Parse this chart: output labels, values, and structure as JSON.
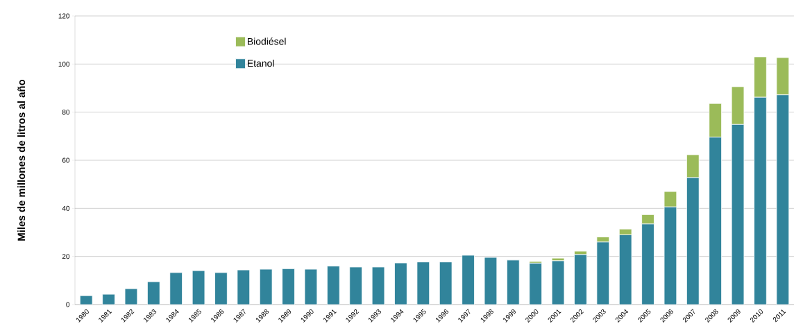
{
  "chart_data": {
    "type": "bar",
    "stacked": true,
    "ylabel": "Miles de millones de litros al año",
    "categories": [
      "1980",
      "1981",
      "1982",
      "1983",
      "1984",
      "1985",
      "1986",
      "1987",
      "1988",
      "1989",
      "1990",
      "1991",
      "1992",
      "1993",
      "1994",
      "1995",
      "1996",
      "1997",
      "1998",
      "1999",
      "2000",
      "2001",
      "2002",
      "2003",
      "2004",
      "2005",
      "2006",
      "2007",
      "2008",
      "2009",
      "2010",
      "2011"
    ],
    "series": [
      {
        "name": "Etanol",
        "color": "#31849b",
        "values": [
          3.7,
          4.3,
          6.6,
          9.5,
          13.3,
          14.1,
          13.3,
          14.4,
          14.7,
          14.9,
          14.7,
          16.0,
          15.6,
          15.6,
          17.3,
          17.7,
          17.7,
          20.5,
          19.6,
          18.5,
          17.2,
          18.2,
          20.8,
          26.0,
          29.0,
          33.5,
          40.6,
          52.8,
          69.6,
          74.9,
          86.2,
          87.2
        ]
      },
      {
        "name": "Biodiésel",
        "color": "#9bbb59",
        "values": [
          null,
          null,
          null,
          null,
          null,
          null,
          null,
          null,
          null,
          null,
          null,
          null,
          null,
          null,
          null,
          null,
          null,
          null,
          null,
          null,
          0.7,
          1.1,
          1.4,
          2.1,
          2.4,
          3.9,
          6.4,
          9.5,
          14.0,
          15.7,
          16.8,
          15.5
        ]
      }
    ],
    "ylim": [
      0,
      120
    ],
    "yticks": [
      0,
      20,
      40,
      60,
      80,
      100,
      120
    ],
    "grid": "y",
    "legend": "top left"
  }
}
